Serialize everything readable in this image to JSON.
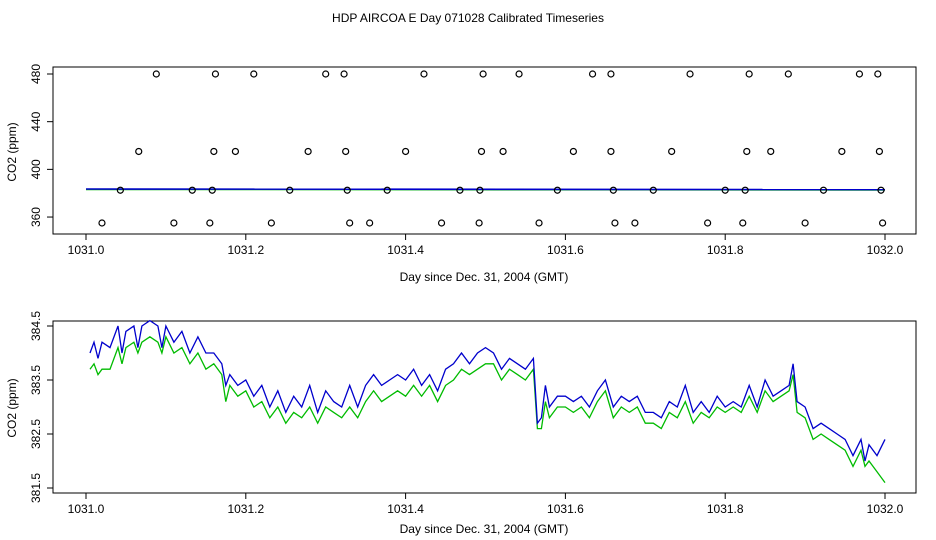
{
  "title": "HDP AIRCOA E  Day 071028  Calibrated Timeseries",
  "colors": {
    "blue": "#0000cc",
    "green": "#00bb00",
    "black": "#000000"
  },
  "chart_data": [
    {
      "type": "scatter",
      "xlabel": "Day since Dec. 31, 2004 (GMT)",
      "ylabel": "CO2 (ppm)",
      "xlim": [
        1031.0,
        1032.0
      ],
      "ylim": [
        350,
        485
      ],
      "xticks": [
        1031.0,
        1031.2,
        1031.4,
        1031.6,
        1031.8,
        1032.0
      ],
      "xtick_labels": [
        "1031.0",
        "1031.2",
        "1031.4",
        "1031.6",
        "1031.8",
        "1032.0"
      ],
      "yticks": [
        360,
        400,
        440,
        480
      ],
      "ytick_labels": [
        "360",
        "400",
        "440",
        "480"
      ],
      "points_480": [
        1031.088,
        1031.162,
        1031.21,
        1031.3,
        1031.323,
        1031.423,
        1031.497,
        1031.542,
        1031.634,
        1031.657,
        1031.756,
        1031.83,
        1031.879,
        1031.968,
        1031.991
      ],
      "points_415": [
        1031.066,
        1031.16,
        1031.187,
        1031.278,
        1031.325,
        1031.4,
        1031.495,
        1031.522,
        1031.61,
        1031.657,
        1031.733,
        1031.827,
        1031.857,
        1031.946,
        1031.993
      ],
      "points_382": [
        1031.043,
        1031.133,
        1031.158,
        1031.255,
        1031.327,
        1031.377,
        1031.468,
        1031.493,
        1031.59,
        1031.66,
        1031.71,
        1031.8,
        1031.825,
        1031.923,
        1031.995
      ],
      "points_355": [
        1031.02,
        1031.11,
        1031.155,
        1031.232,
        1031.33,
        1031.355,
        1031.445,
        1031.492,
        1031.567,
        1031.662,
        1031.687,
        1031.778,
        1031.822,
        1031.9,
        1031.997
      ],
      "series": [
        {
          "name": "blue",
          "x": [
            1031.0,
            1032.0
          ],
          "values": [
            383.5,
            383.0
          ]
        },
        {
          "name": "green",
          "x": [
            1031.0,
            1032.0
          ],
          "values": [
            383.2,
            382.8
          ]
        }
      ]
    },
    {
      "type": "line",
      "xlabel": "Day since Dec. 31, 2004 (GMT)",
      "ylabel": "CO2 (ppm)",
      "xlim": [
        1031.0,
        1032.0
      ],
      "ylim": [
        381.4,
        384.7
      ],
      "xticks": [
        1031.0,
        1031.2,
        1031.4,
        1031.6,
        1031.8,
        1032.0
      ],
      "xtick_labels": [
        "1031.0",
        "1031.2",
        "1031.4",
        "1031.6",
        "1031.8",
        "1032.0"
      ],
      "yticks": [
        381.5,
        382.5,
        383.5,
        384.5
      ],
      "ytick_labels": [
        "381.5",
        "382.5",
        "383.5",
        "384.5"
      ],
      "series": [
        {
          "name": "blue",
          "x": [
            1031.005,
            1031.01,
            1031.015,
            1031.02,
            1031.03,
            1031.04,
            1031.045,
            1031.05,
            1031.06,
            1031.065,
            1031.07,
            1031.08,
            1031.09,
            1031.095,
            1031.1,
            1031.11,
            1031.12,
            1031.13,
            1031.14,
            1031.15,
            1031.16,
            1031.17,
            1031.175,
            1031.18,
            1031.19,
            1031.2,
            1031.21,
            1031.22,
            1031.23,
            1031.24,
            1031.25,
            1031.26,
            1031.27,
            1031.28,
            1031.29,
            1031.3,
            1031.31,
            1031.32,
            1031.33,
            1031.34,
            1031.35,
            1031.36,
            1031.37,
            1031.38,
            1031.39,
            1031.4,
            1031.41,
            1031.42,
            1031.43,
            1031.44,
            1031.45,
            1031.46,
            1031.47,
            1031.48,
            1031.49,
            1031.5,
            1031.51,
            1031.52,
            1031.53,
            1031.54,
            1031.55,
            1031.56,
            1031.565,
            1031.57,
            1031.575,
            1031.58,
            1031.59,
            1031.6,
            1031.61,
            1031.62,
            1031.63,
            1031.64,
            1031.65,
            1031.66,
            1031.67,
            1031.68,
            1031.69,
            1031.7,
            1031.71,
            1031.72,
            1031.73,
            1031.74,
            1031.75,
            1031.76,
            1031.77,
            1031.78,
            1031.79,
            1031.8,
            1031.81,
            1031.82,
            1031.83,
            1031.84,
            1031.85,
            1031.86,
            1031.87,
            1031.88,
            1031.885,
            1031.89,
            1031.9,
            1031.91,
            1031.92,
            1031.93,
            1031.94,
            1031.95,
            1031.96,
            1031.97,
            1031.975,
            1031.98,
            1031.99,
            1032.0
          ],
          "values": [
            384.0,
            384.2,
            383.9,
            384.2,
            384.1,
            384.5,
            384.0,
            384.4,
            384.5,
            384.1,
            384.5,
            384.6,
            384.5,
            384.1,
            384.5,
            384.2,
            384.4,
            384.0,
            384.3,
            384.0,
            384.0,
            383.8,
            383.4,
            383.6,
            383.4,
            383.5,
            383.2,
            383.4,
            383.0,
            383.3,
            382.9,
            383.2,
            383.0,
            383.4,
            382.9,
            383.3,
            383.1,
            383.0,
            383.4,
            383.0,
            383.4,
            383.6,
            383.4,
            383.5,
            383.6,
            383.5,
            383.7,
            383.4,
            383.6,
            383.3,
            383.7,
            383.8,
            384.0,
            383.8,
            384.0,
            384.1,
            384.0,
            383.7,
            383.9,
            383.8,
            383.7,
            383.9,
            382.7,
            382.8,
            383.4,
            383.0,
            383.2,
            383.2,
            383.1,
            383.2,
            383.0,
            383.3,
            383.5,
            383.0,
            383.2,
            383.1,
            383.2,
            382.9,
            382.9,
            382.8,
            383.1,
            383.0,
            383.4,
            382.9,
            383.1,
            382.9,
            383.2,
            383.0,
            383.1,
            383.0,
            383.4,
            383.0,
            383.5,
            383.2,
            383.3,
            383.4,
            383.8,
            383.1,
            383.0,
            382.6,
            382.7,
            382.6,
            382.5,
            382.4,
            382.1,
            382.4,
            382.0,
            382.3,
            382.1,
            382.4
          ]
        },
        {
          "name": "green",
          "x": [
            1031.005,
            1031.01,
            1031.015,
            1031.02,
            1031.03,
            1031.04,
            1031.045,
            1031.05,
            1031.06,
            1031.065,
            1031.07,
            1031.08,
            1031.09,
            1031.095,
            1031.1,
            1031.11,
            1031.12,
            1031.13,
            1031.14,
            1031.15,
            1031.16,
            1031.17,
            1031.175,
            1031.18,
            1031.19,
            1031.2,
            1031.21,
            1031.22,
            1031.23,
            1031.24,
            1031.25,
            1031.26,
            1031.27,
            1031.28,
            1031.29,
            1031.3,
            1031.31,
            1031.32,
            1031.33,
            1031.34,
            1031.35,
            1031.36,
            1031.37,
            1031.38,
            1031.39,
            1031.4,
            1031.41,
            1031.42,
            1031.43,
            1031.44,
            1031.45,
            1031.46,
            1031.47,
            1031.48,
            1031.49,
            1031.5,
            1031.51,
            1031.52,
            1031.53,
            1031.54,
            1031.55,
            1031.56,
            1031.565,
            1031.57,
            1031.575,
            1031.58,
            1031.59,
            1031.6,
            1031.61,
            1031.62,
            1031.63,
            1031.64,
            1031.65,
            1031.66,
            1031.67,
            1031.68,
            1031.69,
            1031.7,
            1031.71,
            1031.72,
            1031.73,
            1031.74,
            1031.75,
            1031.76,
            1031.77,
            1031.78,
            1031.79,
            1031.8,
            1031.81,
            1031.82,
            1031.83,
            1031.84,
            1031.85,
            1031.86,
            1031.87,
            1031.88,
            1031.885,
            1031.89,
            1031.9,
            1031.91,
            1031.92,
            1031.93,
            1031.94,
            1031.95,
            1031.96,
            1031.97,
            1031.975,
            1031.98,
            1031.99,
            1032.0
          ],
          "values": [
            383.7,
            383.8,
            383.6,
            383.7,
            383.7,
            384.1,
            383.8,
            384.1,
            384.2,
            384.0,
            384.2,
            384.3,
            384.2,
            384.0,
            384.3,
            384.0,
            384.1,
            383.8,
            384.0,
            383.7,
            383.8,
            383.6,
            383.1,
            383.4,
            383.2,
            383.3,
            383.0,
            383.1,
            382.8,
            383.0,
            382.7,
            382.9,
            382.8,
            383.0,
            382.7,
            383.0,
            382.9,
            382.8,
            383.0,
            382.8,
            383.1,
            383.3,
            383.1,
            383.2,
            383.3,
            383.2,
            383.4,
            383.2,
            383.4,
            383.1,
            383.4,
            383.5,
            383.7,
            383.6,
            383.7,
            383.8,
            383.8,
            383.5,
            383.7,
            383.6,
            383.5,
            383.7,
            382.6,
            382.6,
            383.1,
            382.8,
            383.0,
            383.0,
            382.9,
            383.0,
            382.8,
            383.1,
            383.3,
            382.8,
            383.0,
            382.9,
            383.0,
            382.7,
            382.7,
            382.6,
            382.9,
            382.8,
            383.1,
            382.7,
            382.9,
            382.8,
            383.0,
            382.9,
            383.0,
            382.9,
            383.2,
            382.9,
            383.3,
            383.1,
            383.2,
            383.3,
            383.6,
            382.9,
            382.8,
            382.4,
            382.5,
            382.4,
            382.3,
            382.2,
            381.9,
            382.2,
            381.9,
            382.0,
            381.8,
            381.6
          ]
        }
      ]
    }
  ]
}
